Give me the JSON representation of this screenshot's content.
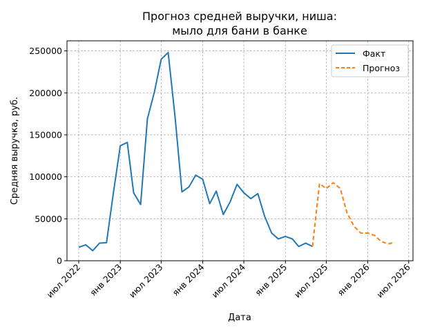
{
  "chart_data": {
    "type": "line",
    "title": [
      "Прогноз средней выручки, ниша:",
      "мыло для бани в банке"
    ],
    "xlabel": "Дата",
    "ylabel": "Средняя выручка, руб.",
    "ylim": [
      0,
      262000
    ],
    "xlim": [
      "2022-05-10",
      "2026-07-20"
    ],
    "yticks": [
      0,
      50000,
      100000,
      150000,
      200000,
      250000
    ],
    "ytick_labels": [
      "0",
      "50000",
      "100000",
      "150000",
      "200000",
      "250000"
    ],
    "xticks": [
      "2022-07-01",
      "2023-01-01",
      "2023-07-01",
      "2024-01-01",
      "2024-07-01",
      "2025-01-01",
      "2025-07-01",
      "2026-01-01",
      "2026-07-01"
    ],
    "xtick_labels": [
      "июл 2022",
      "янв 2023",
      "июл 2023",
      "янв 2024",
      "июл 2024",
      "янв 2025",
      "июл 2025",
      "янв 2026",
      "июл 2026"
    ],
    "grid": true,
    "legend_position": "top-right",
    "series": [
      {
        "name": "Факт",
        "color": "#1f77b4",
        "style": "solid",
        "points": [
          [
            "2022-07-01",
            16000
          ],
          [
            "2022-08-01",
            19000
          ],
          [
            "2022-09-01",
            12000
          ],
          [
            "2022-10-01",
            21000
          ],
          [
            "2022-11-01",
            21500
          ],
          [
            "2022-12-01",
            80000
          ],
          [
            "2023-01-01",
            137000
          ],
          [
            "2023-02-01",
            141000
          ],
          [
            "2023-03-01",
            81000
          ],
          [
            "2023-04-01",
            67000
          ],
          [
            "2023-05-01",
            169000
          ],
          [
            "2023-06-01",
            201000
          ],
          [
            "2023-07-01",
            240000
          ],
          [
            "2023-08-01",
            248000
          ],
          [
            "2023-09-01",
            170000
          ],
          [
            "2023-10-01",
            82000
          ],
          [
            "2023-11-01",
            88000
          ],
          [
            "2023-12-01",
            102000
          ],
          [
            "2024-01-01",
            97000
          ],
          [
            "2024-02-01",
            68000
          ],
          [
            "2024-03-01",
            83000
          ],
          [
            "2024-04-01",
            55000
          ],
          [
            "2024-05-01",
            70000
          ],
          [
            "2024-06-01",
            91000
          ],
          [
            "2024-07-01",
            81000
          ],
          [
            "2024-08-01",
            74000
          ],
          [
            "2024-09-01",
            80000
          ],
          [
            "2024-10-01",
            53000
          ],
          [
            "2024-11-01",
            33000
          ],
          [
            "2024-12-01",
            26000
          ],
          [
            "2025-01-01",
            29000
          ],
          [
            "2025-02-01",
            26000
          ],
          [
            "2025-03-01",
            17000
          ],
          [
            "2025-04-01",
            21000
          ],
          [
            "2025-05-01",
            17000
          ]
        ]
      },
      {
        "name": "Прогноз",
        "color": "#ff7f0e",
        "style": "dashed",
        "points": [
          [
            "2025-05-01",
            17000
          ],
          [
            "2025-06-01",
            92000
          ],
          [
            "2025-07-01",
            86000
          ],
          [
            "2025-08-01",
            93000
          ],
          [
            "2025-09-01",
            86000
          ],
          [
            "2025-10-01",
            57000
          ],
          [
            "2025-11-01",
            41000
          ],
          [
            "2025-12-01",
            33000
          ],
          [
            "2026-01-01",
            33000
          ],
          [
            "2026-02-01",
            30000
          ],
          [
            "2026-03-01",
            23000
          ],
          [
            "2026-04-01",
            20000
          ],
          [
            "2026-05-01",
            22000
          ]
        ]
      }
    ]
  }
}
